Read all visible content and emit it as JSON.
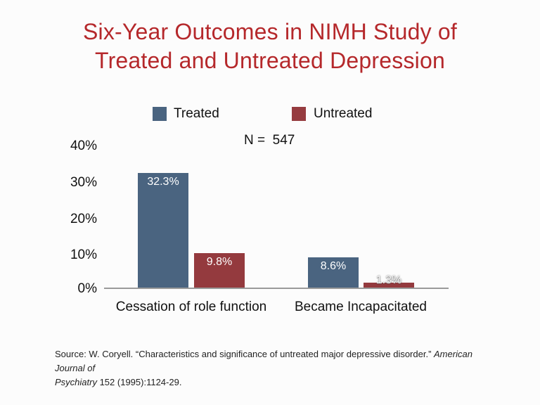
{
  "slide": {
    "title_line1": "Six-Year Outcomes in NIMH Study of",
    "title_line2": "Treated and Untreated Depression",
    "title_color": "#b5282b",
    "background": "#fcfcfc"
  },
  "legend": {
    "items": [
      {
        "label": "Treated",
        "color": "#4a6480"
      },
      {
        "label": "Untreated",
        "color": "#963c40"
      }
    ]
  },
  "n_label": "N =  547",
  "chart_data": {
    "type": "bar",
    "title": "Six-Year Outcomes in NIMH Study of Treated and Untreated Depression",
    "sample_size_label": "N =  547",
    "categories": [
      "Cessation of role function",
      "Became Incapacitated"
    ],
    "series": [
      {
        "name": "Treated",
        "color": "#4a6480",
        "values": [
          32.3,
          8.6
        ],
        "labels": [
          "32.3%",
          "8.6%"
        ]
      },
      {
        "name": "Untreated",
        "color": "#943a3e",
        "values": [
          9.8,
          1.3
        ],
        "labels": [
          "9.8%",
          "1.3%"
        ]
      }
    ],
    "yticks": [
      "40%",
      "30%",
      "20%",
      "10%",
      "0%"
    ],
    "ylim": [
      0,
      40
    ],
    "ylabel": "",
    "xlabel": "",
    "grid": false,
    "legend_position": "top",
    "axis_color": "#9a9a9a",
    "value_label_color": "#ffffff"
  },
  "source": {
    "line1_regular": "Source: W. Coryell. “Characteristics and significance of untreated major depressive disorder.” ",
    "line1_italic": "American Journal of",
    "line2_italic": "Psychiatry",
    "line2_regular": " 152 (1995):1124-29."
  }
}
